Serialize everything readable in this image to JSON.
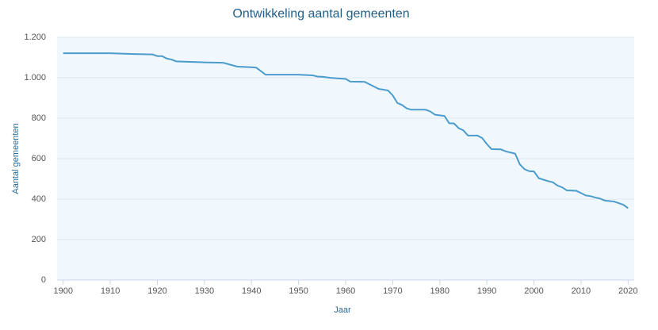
{
  "chart_data": {
    "type": "line",
    "title": "Ontwikkeling aantal gemeenten",
    "xlabel": "Jaar",
    "ylabel": "Aantal gemeenten",
    "x": [
      1900,
      1910,
      1915,
      1919,
      1920,
      1921,
      1922,
      1923,
      1924,
      1930,
      1934,
      1937,
      1940,
      1941,
      1943,
      1950,
      1953,
      1954,
      1955,
      1957,
      1960,
      1961,
      1964,
      1967,
      1969,
      1970,
      1971,
      1972,
      1973,
      1974,
      1977,
      1978,
      1979,
      1981,
      1982,
      1983,
      1984,
      1985,
      1986,
      1988,
      1989,
      1990,
      1991,
      1993,
      1994,
      1996,
      1997,
      1998,
      1999,
      2000,
      2001,
      2002,
      2003,
      2004,
      2005,
      2006,
      2007,
      2009,
      2010,
      2011,
      2012,
      2013,
      2014,
      2015,
      2017,
      2018,
      2019,
      2020
    ],
    "values": [
      1121,
      1121,
      1117,
      1115,
      1107,
      1107,
      1095,
      1090,
      1081,
      1076,
      1074,
      1055,
      1052,
      1050,
      1015,
      1015,
      1012,
      1006,
      1005,
      999,
      994,
      981,
      980,
      945,
      937,
      913,
      875,
      865,
      848,
      842,
      842,
      833,
      817,
      811,
      775,
      774,
      751,
      740,
      714,
      714,
      702,
      672,
      647,
      646,
      636,
      625,
      572,
      548,
      538,
      537,
      504,
      496,
      489,
      483,
      467,
      458,
      443,
      441,
      430,
      418,
      415,
      408,
      403,
      393,
      388,
      380,
      372,
      355
    ],
    "color": "#4a9ccc",
    "xlim": [
      1898.7,
      2021.3
    ],
    "xticks": [
      1900,
      1910,
      1920,
      1930,
      1940,
      1950,
      1960,
      1970,
      1980,
      1990,
      2000,
      2010,
      2020
    ],
    "ylim": [
      0,
      1200
    ],
    "yticks": [
      0,
      200,
      400,
      600,
      800,
      {
        "value": 1000,
        "label": "1.000"
      },
      {
        "value": 1200,
        "label": "1.200"
      }
    ],
    "grid": true
  }
}
